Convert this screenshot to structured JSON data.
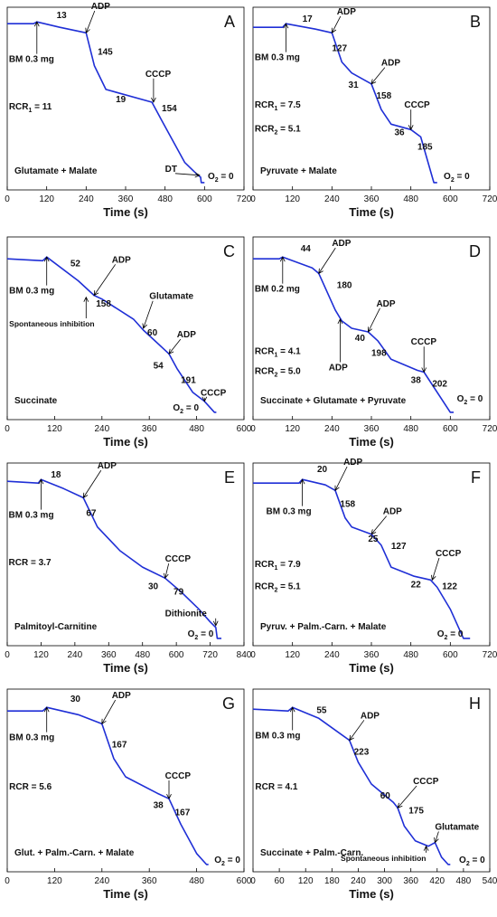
{
  "chart_data": [
    {
      "type": "line",
      "panel": "A",
      "xlabel": "Time (s)",
      "xlim": [
        0,
        720
      ],
      "ylim": [
        0,
        100
      ],
      "xticks": [
        "0",
        "120",
        "240",
        "360",
        "480",
        "600",
        "720"
      ],
      "condition": "Glutamate + Malate",
      "x": [
        0,
        80,
        90,
        160,
        240,
        265,
        300,
        440,
        470,
        540,
        580,
        588,
        590,
        600
      ],
      "y": [
        91,
        91,
        92,
        89,
        86,
        68,
        55,
        48,
        38,
        15,
        8,
        7,
        4,
        4
      ],
      "annotations": [
        {
          "text": "13",
          "x": 150,
          "y": 94
        },
        {
          "text": "145",
          "x": 275,
          "y": 74
        },
        {
          "text": "19",
          "x": 330,
          "y": 48
        },
        {
          "text": "154",
          "x": 470,
          "y": 43
        },
        {
          "text": "BM 0.3 mg",
          "x": 5,
          "y": 70,
          "arrow_to": [
            90,
            92
          ]
        },
        {
          "text": "ADP",
          "x": 255,
          "y": 99,
          "arrow_to": [
            240,
            86
          ]
        },
        {
          "text": "CCCP",
          "x": 420,
          "y": 62,
          "arrow_to": [
            445,
            48
          ]
        },
        {
          "text": "DT",
          "x": 480,
          "y": 10,
          "arrow_to": [
            585,
            8
          ]
        },
        {
          "text": "RCR",
          "sub": "1",
          "rest": " = 11",
          "x": 5,
          "y": 44
        },
        {
          "text": "O",
          "sub": "2",
          "rest": " = 0",
          "x": 610,
          "y": 6
        }
      ]
    },
    {
      "type": "line",
      "panel": "B",
      "xlabel": "Time (s)",
      "xlim": [
        0,
        720
      ],
      "ylim": [
        0,
        100
      ],
      "xticks": [
        "0",
        "120",
        "240",
        "360",
        "480",
        "600",
        "720"
      ],
      "condition": "Pyruvate + Malate",
      "x": [
        0,
        90,
        100,
        190,
        240,
        270,
        300,
        360,
        390,
        420,
        480,
        510,
        550,
        560
      ],
      "y": [
        89,
        89,
        91,
        88,
        86,
        70,
        64,
        58,
        44,
        36,
        33,
        29,
        4,
        4
      ],
      "annotations": [
        {
          "text": "17",
          "x": 150,
          "y": 92
        },
        {
          "text": "127",
          "x": 240,
          "y": 76
        },
        {
          "text": "31",
          "x": 290,
          "y": 56
        },
        {
          "text": "158",
          "x": 375,
          "y": 50
        },
        {
          "text": "36",
          "x": 430,
          "y": 30
        },
        {
          "text": "185",
          "x": 500,
          "y": 22
        },
        {
          "text": "BM 0.3 mg",
          "x": 5,
          "y": 71,
          "arrow_to": [
            100,
            91
          ]
        },
        {
          "text": "ADP",
          "x": 255,
          "y": 96,
          "arrow_to": [
            240,
            86
          ]
        },
        {
          "text": "ADP",
          "x": 390,
          "y": 68,
          "arrow_to": [
            360,
            58
          ]
        },
        {
          "text": "CCCP",
          "x": 460,
          "y": 45,
          "arrow_to": [
            480,
            33
          ]
        },
        {
          "text": "RCR",
          "sub": "1",
          "rest": " = 7.5",
          "x": 5,
          "y": 45
        },
        {
          "text": "RCR",
          "sub": "2",
          "rest": " = 5.1",
          "x": 5,
          "y": 32
        },
        {
          "text": "O",
          "sub": "2",
          "rest": " = 0",
          "x": 580,
          "y": 6
        }
      ]
    },
    {
      "type": "line",
      "panel": "C",
      "xlabel": "Time (s)",
      "xlim": [
        0,
        600
      ],
      "ylim": [
        0,
        100
      ],
      "xticks": [
        "0",
        "120",
        "240",
        "360",
        "480",
        "600"
      ],
      "condition": "Succinate",
      "x": [
        0,
        90,
        100,
        180,
        220,
        240,
        320,
        345,
        370,
        410,
        430,
        470,
        500,
        525,
        530
      ],
      "y": [
        88,
        87,
        89,
        76,
        68,
        66,
        55,
        49,
        44,
        36,
        28,
        15,
        10,
        4,
        4
      ],
      "annotations": [
        {
          "text": "52",
          "x": 160,
          "y": 84
        },
        {
          "text": "158",
          "x": 225,
          "y": 62
        },
        {
          "text": "60",
          "x": 355,
          "y": 46
        },
        {
          "text": "54",
          "x": 370,
          "y": 28
        },
        {
          "text": "191",
          "x": 440,
          "y": 20
        },
        {
          "text": "BM 0.3 mg",
          "x": 5,
          "y": 69,
          "arrow_to": [
            100,
            89
          ]
        },
        {
          "text": "ADP",
          "x": 265,
          "y": 86,
          "arrow_to": [
            220,
            68
          ]
        },
        {
          "text": "Glutamate",
          "x": 360,
          "y": 66,
          "arrow_to": [
            345,
            50
          ]
        },
        {
          "text": "ADP",
          "x": 430,
          "y": 45,
          "arrow_to": [
            410,
            36
          ]
        },
        {
          "text": "CCCP",
          "x": 490,
          "y": 13,
          "arrow_to": [
            500,
            10
          ]
        },
        {
          "text": "Spontaneous inhibition",
          "x": 5,
          "y": 51,
          "arrow_to": [
            200,
            67
          ],
          "small": true
        },
        {
          "text": "O",
          "sub": "2",
          "rest": " = 0",
          "x": 420,
          "y": 5
        }
      ]
    },
    {
      "type": "line",
      "panel": "D",
      "xlabel": "Time (s)",
      "xlim": [
        0,
        720
      ],
      "ylim": [
        0,
        100
      ],
      "xticks": [
        "0",
        "120",
        "240",
        "360",
        "480",
        "600",
        "720"
      ],
      "condition": "Succinate + Glutamate + Pyruvate",
      "x": [
        0,
        80,
        90,
        180,
        200,
        250,
        270,
        300,
        350,
        380,
        420,
        500,
        520,
        600,
        610
      ],
      "y": [
        88,
        88,
        89,
        83,
        80,
        60,
        54,
        50,
        48,
        43,
        33,
        27,
        26,
        4,
        4
      ],
      "annotations": [
        {
          "text": "44",
          "x": 145,
          "y": 92
        },
        {
          "text": "180",
          "x": 255,
          "y": 72
        },
        {
          "text": "40",
          "x": 310,
          "y": 43
        },
        {
          "text": "198",
          "x": 360,
          "y": 35
        },
        {
          "text": "38",
          "x": 480,
          "y": 20
        },
        {
          "text": "202",
          "x": 545,
          "y": 18
        },
        {
          "text": "BM 0.2 mg",
          "x": 5,
          "y": 70,
          "arrow_to": [
            90,
            89
          ]
        },
        {
          "text": "ADP",
          "x": 240,
          "y": 95,
          "arrow_to": [
            200,
            80
          ]
        },
        {
          "text": "ADP",
          "x": 230,
          "y": 27,
          "arrow_to": [
            265,
            55
          ]
        },
        {
          "text": "ADP",
          "x": 375,
          "y": 62,
          "arrow_to": [
            350,
            48
          ]
        },
        {
          "text": "CCCP",
          "x": 480,
          "y": 41,
          "arrow_to": [
            520,
            26
          ]
        },
        {
          "text": "RCR",
          "sub": "1",
          "rest": " = 4.1",
          "x": 5,
          "y": 36
        },
        {
          "text": "RCR",
          "sub": "2",
          "rest": " = 5.0",
          "x": 5,
          "y": 25
        },
        {
          "text": "O",
          "sub": "2",
          "rest": " = 0",
          "x": 620,
          "y": 10
        }
      ]
    },
    {
      "type": "line",
      "panel": "E",
      "xlabel": "Time (s)",
      "xlim": [
        0,
        840
      ],
      "ylim": [
        0,
        100
      ],
      "xticks": [
        "0",
        "120",
        "240",
        "360",
        "480",
        "600",
        "720",
        "840"
      ],
      "condition": "Palmitoyl-Carnitine",
      "x": [
        0,
        110,
        120,
        200,
        270,
        320,
        400,
        480,
        560,
        620,
        680,
        720,
        740,
        745,
        760
      ],
      "y": [
        90,
        89,
        91,
        86,
        81,
        65,
        52,
        43,
        37,
        29,
        20,
        13,
        10,
        4,
        4
      ],
      "annotations": [
        {
          "text": "18",
          "x": 155,
          "y": 92
        },
        {
          "text": "67",
          "x": 280,
          "y": 71
        },
        {
          "text": "30",
          "x": 500,
          "y": 31
        },
        {
          "text": "79",
          "x": 590,
          "y": 28
        },
        {
          "text": "BM 0.3 mg",
          "x": 5,
          "y": 70,
          "arrow_to": [
            120,
            91
          ]
        },
        {
          "text": "ADP",
          "x": 320,
          "y": 97,
          "arrow_to": [
            270,
            81
          ]
        },
        {
          "text": "CCCP",
          "x": 560,
          "y": 46,
          "arrow_to": [
            560,
            37
          ]
        },
        {
          "text": "Dithionite",
          "x": 560,
          "y": 16,
          "arrow_to": [
            740,
            11
          ]
        },
        {
          "text": "RCR = 3.7",
          "x": 5,
          "y": 44
        },
        {
          "text": "O",
          "sub": "2",
          "rest": " = 0",
          "x": 640,
          "y": 5
        }
      ]
    },
    {
      "type": "line",
      "panel": "F",
      "xlabel": "Time (s)",
      "xlim": [
        0,
        720
      ],
      "ylim": [
        0,
        100
      ],
      "xticks": [
        "0",
        "120",
        "240",
        "360",
        "480",
        "600",
        "720"
      ],
      "condition": "Pyruv. + Palm.-Carn. + Malate",
      "x": [
        0,
        140,
        150,
        220,
        250,
        280,
        300,
        360,
        390,
        420,
        490,
        540,
        560,
        600,
        640,
        660
      ],
      "y": [
        89,
        89,
        91,
        88,
        85,
        70,
        65,
        61,
        55,
        43,
        38,
        36,
        32,
        20,
        4,
        4
      ],
      "annotations": [
        {
          "text": "20",
          "x": 195,
          "y": 95
        },
        {
          "text": "158",
          "x": 265,
          "y": 76
        },
        {
          "text": "25",
          "x": 350,
          "y": 57
        },
        {
          "text": "127",
          "x": 420,
          "y": 53
        },
        {
          "text": "22",
          "x": 480,
          "y": 32
        },
        {
          "text": "122",
          "x": 575,
          "y": 31
        },
        {
          "text": "BM 0.3 mg",
          "x": 40,
          "y": 72,
          "arrow_to": [
            150,
            91
          ]
        },
        {
          "text": "ADP",
          "x": 275,
          "y": 99,
          "arrow_to": [
            250,
            85
          ]
        },
        {
          "text": "ADP",
          "x": 395,
          "y": 72,
          "arrow_to": [
            360,
            61
          ]
        },
        {
          "text": "CCCP",
          "x": 555,
          "y": 49,
          "arrow_to": [
            545,
            36
          ]
        },
        {
          "text": "RCR",
          "sub": "1",
          "rest": " = 7.9",
          "x": 5,
          "y": 43
        },
        {
          "text": "RCR",
          "sub": "2",
          "rest": " = 5.1",
          "x": 5,
          "y": 31
        },
        {
          "text": "O",
          "sub": "2",
          "rest": " = 0",
          "x": 560,
          "y": 5
        }
      ]
    },
    {
      "type": "line",
      "panel": "G",
      "xlabel": "Time (s)",
      "xlim": [
        0,
        600
      ],
      "ylim": [
        0,
        100
      ],
      "xticks": [
        "0",
        "120",
        "240",
        "360",
        "480",
        "600"
      ],
      "condition": "Glut. + Palm.-Carn. + Malate",
      "x": [
        0,
        90,
        100,
        180,
        240,
        270,
        300,
        380,
        410,
        440,
        480,
        505,
        510
      ],
      "y": [
        88,
        88,
        90,
        86,
        81,
        62,
        52,
        43,
        40,
        26,
        10,
        4,
        4
      ],
      "annotations": [
        {
          "text": "30",
          "x": 160,
          "y": 93
        },
        {
          "text": "167",
          "x": 265,
          "y": 68
        },
        {
          "text": "38",
          "x": 370,
          "y": 35
        },
        {
          "text": "167",
          "x": 425,
          "y": 31
        },
        {
          "text": "BM 0.3 mg",
          "x": 5,
          "y": 72,
          "arrow_to": [
            100,
            90
          ]
        },
        {
          "text": "ADP",
          "x": 265,
          "y": 95,
          "arrow_to": [
            240,
            81
          ]
        },
        {
          "text": "CCCP",
          "x": 400,
          "y": 51,
          "arrow_to": [
            410,
            40
          ]
        },
        {
          "text": "RCR = 5.6",
          "x": 5,
          "y": 45
        },
        {
          "text": "O",
          "sub": "2",
          "rest": " = 0",
          "x": 525,
          "y": 5
        }
      ]
    },
    {
      "type": "line",
      "panel": "H",
      "xlabel": "Time (s)",
      "xlim": [
        0,
        540
      ],
      "ylim": [
        0,
        100
      ],
      "xticks": [
        "0",
        "60",
        "120",
        "180",
        "240",
        "300",
        "360",
        "420",
        "480",
        "540"
      ],
      "condition": "Succinate + Palm.-Carn.",
      "x": [
        0,
        80,
        90,
        150,
        220,
        240,
        270,
        320,
        330,
        345,
        370,
        400,
        415,
        430,
        445,
        450
      ],
      "y": [
        89,
        88,
        90,
        84,
        72,
        60,
        48,
        38,
        35,
        25,
        17,
        14,
        16,
        8,
        4,
        4
      ],
      "annotations": [
        {
          "text": "55",
          "x": 145,
          "y": 87
        },
        {
          "text": "223",
          "x": 230,
          "y": 64
        },
        {
          "text": "60",
          "x": 290,
          "y": 40
        },
        {
          "text": "175",
          "x": 355,
          "y": 32
        },
        {
          "text": "BM 0.3 mg",
          "x": 5,
          "y": 73,
          "arrow_to": [
            90,
            90
          ]
        },
        {
          "text": "ADP",
          "x": 245,
          "y": 84,
          "arrow_to": [
            220,
            72
          ]
        },
        {
          "text": "CCCP",
          "x": 365,
          "y": 48,
          "arrow_to": [
            330,
            35
          ]
        },
        {
          "text": "Glutamate",
          "x": 415,
          "y": 23,
          "arrow_to": [
            415,
            16
          ]
        },
        {
          "text": "Spontaneous inhibition",
          "x": 200,
          "y": 6,
          "arrow_to": [
            395,
            14
          ],
          "small": true
        },
        {
          "text": "RCR = 4.1",
          "x": 5,
          "y": 45
        },
        {
          "text": "O",
          "sub": "2",
          "rest": " = 0",
          "x": 470,
          "y": 5
        }
      ]
    }
  ]
}
